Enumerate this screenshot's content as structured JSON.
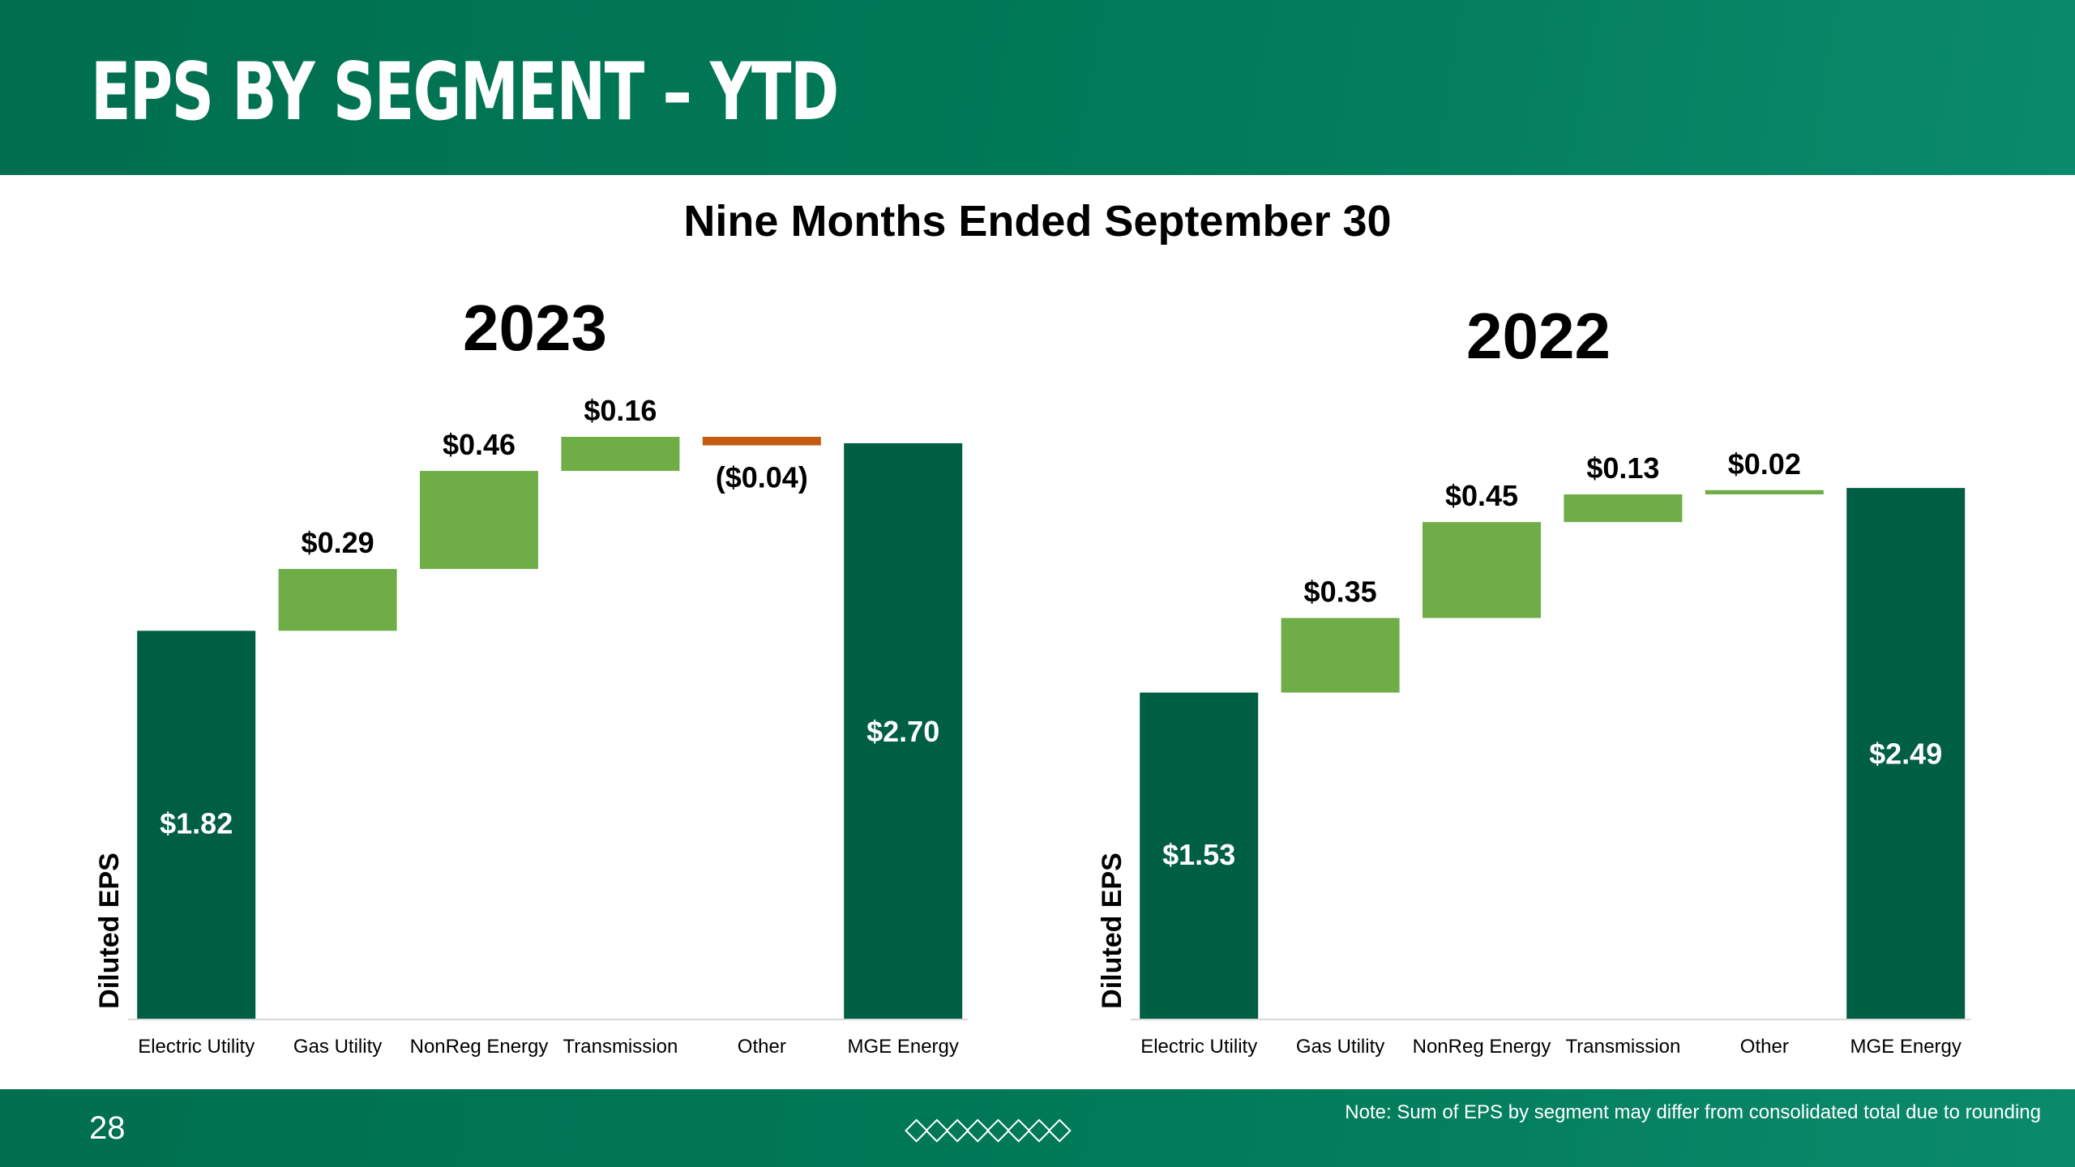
{
  "header": {
    "title": "EPS BY SEGMENT – YTD"
  },
  "subtitle": "Nine Months Ended September 30",
  "footer": {
    "page_number": "28",
    "diamonds": "◇◇◇◇◇◇◇◇",
    "note": "Note: Sum of EPS by segment may differ from consolidated total due to rounding"
  },
  "colors": {
    "header_green": "#007a58",
    "total_bar": "#005f43",
    "positive_bar": "#6fad47",
    "negative_bar": "#c55a11"
  },
  "chart_data": [
    {
      "type": "bar",
      "subtype": "waterfall",
      "title": "2023",
      "ylabel": "Diluted EPS",
      "xlabel": "",
      "categories": [
        "Electric Utility",
        "Gas Utility",
        "NonReg Energy",
        "Transmission",
        "Other",
        "MGE Energy"
      ],
      "values": [
        1.82,
        0.29,
        0.46,
        0.16,
        -0.04,
        2.7
      ],
      "labels": [
        "$1.82",
        "$0.29",
        "$0.46",
        "$0.16",
        "($0.04)",
        "$2.70"
      ],
      "kinds": [
        "total",
        "delta",
        "delta",
        "delta",
        "delta",
        "total"
      ],
      "ylim": [
        0,
        2.85
      ]
    },
    {
      "type": "bar",
      "subtype": "waterfall",
      "title": "2022",
      "ylabel": "Diluted EPS",
      "xlabel": "",
      "categories": [
        "Electric Utility",
        "Gas Utility",
        "NonReg Energy",
        "Transmission",
        "Other",
        "MGE Energy"
      ],
      "values": [
        1.53,
        0.35,
        0.45,
        0.13,
        0.02,
        2.49
      ],
      "labels": [
        "$1.53",
        "$0.35",
        "$0.45",
        "$0.13",
        "$0.02",
        "$2.49"
      ],
      "kinds": [
        "total",
        "delta",
        "delta",
        "delta",
        "delta",
        "total"
      ],
      "ylim": [
        0,
        2.85
      ]
    }
  ]
}
